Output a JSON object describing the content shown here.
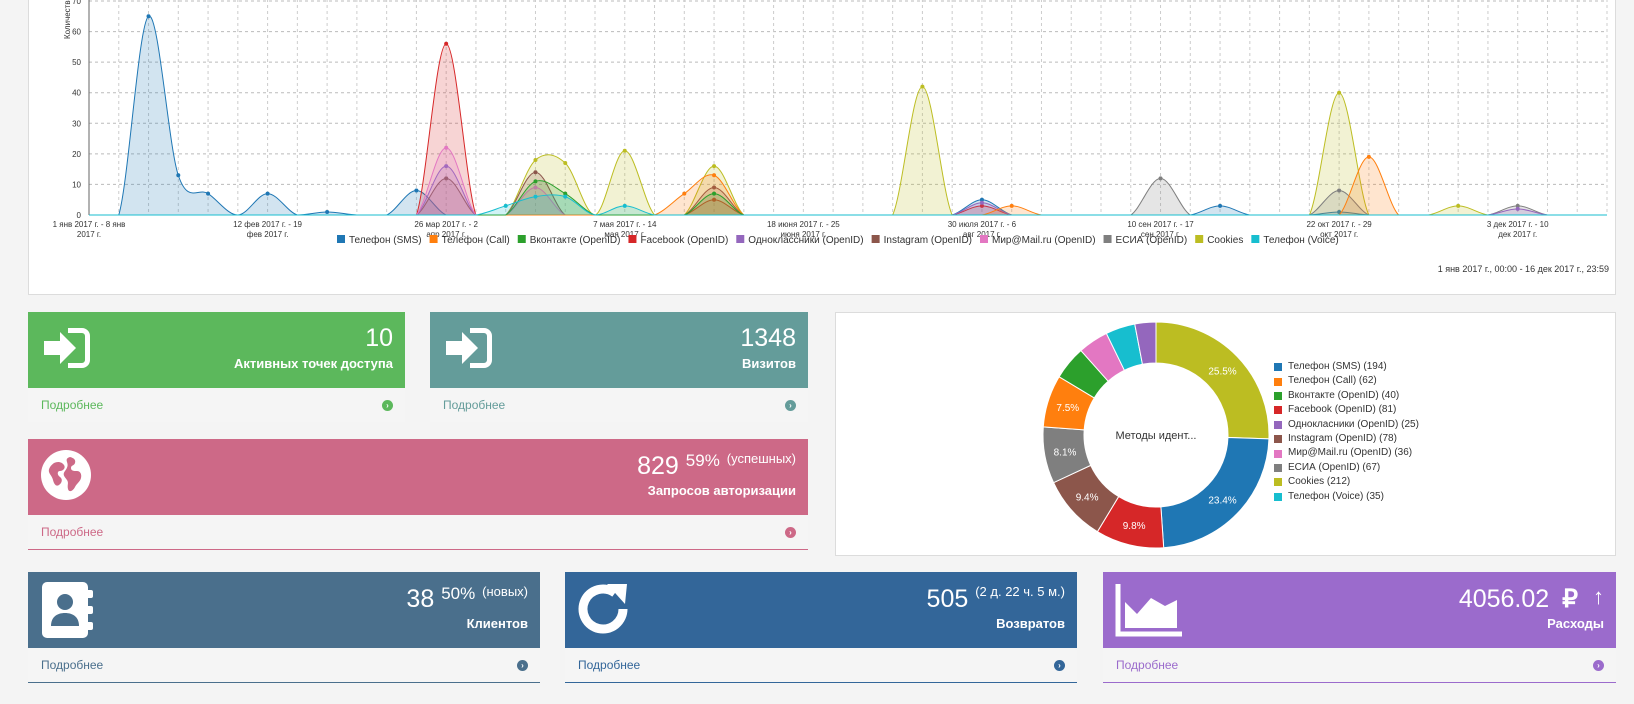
{
  "chart_data": {
    "type": "area",
    "ylabel": "Количество",
    "yticks": [
      0,
      10,
      20,
      30,
      40,
      50,
      60,
      70
    ],
    "ylim": [
      0,
      70
    ],
    "xticks": [
      [
        "1 янв 2017 г. - 8 янв",
        "2017 г."
      ],
      [
        "12 фев 2017 г. - 19",
        "фев 2017 г."
      ],
      [
        "26 мар 2017 г. - 2",
        "апр 2017 г."
      ],
      [
        "7 мая 2017 г. - 14",
        "мая 2017 г."
      ],
      [
        "18 июня 2017 г. - 25",
        "июня 2017 г."
      ],
      [
        "30 июля 2017 г. - 6",
        "авг 2017 г."
      ],
      [
        "10 сен 2017 г. - 17",
        "сен 2017 г."
      ],
      [
        "22 окт 2017 г. - 29",
        "окт 2017 г."
      ],
      [
        "3 дек 2017 г. - 10",
        "дек 2017 г."
      ]
    ],
    "grid": true,
    "legend_position": "bottom",
    "series": [
      {
        "name": "Телефон (SMS)",
        "color": "#1f77b4",
        "peaks": [
          [
            2,
            65
          ],
          [
            3,
            13
          ],
          [
            4,
            7
          ],
          [
            6,
            7
          ],
          [
            8,
            1
          ],
          [
            11,
            8
          ],
          [
            30,
            5
          ],
          [
            38,
            3
          ],
          [
            42,
            1
          ]
        ]
      },
      {
        "name": "Телефон (Call)",
        "color": "#ff7f0e",
        "peaks": [
          [
            20,
            7
          ],
          [
            21,
            13
          ],
          [
            43,
            19
          ],
          [
            31,
            3
          ]
        ]
      },
      {
        "name": "Вконтакте (OpenID)",
        "color": "#2ca02c",
        "peaks": [
          [
            15,
            11
          ],
          [
            16,
            7
          ],
          [
            21,
            7
          ]
        ]
      },
      {
        "name": "Facebook (OpenID)",
        "color": "#d62728",
        "peaks": [
          [
            12,
            56
          ],
          [
            21,
            5
          ],
          [
            30,
            3
          ]
        ]
      },
      {
        "name": "Одноклассники (OpenID)",
        "color": "#9467bd",
        "peaks": [
          [
            12,
            16
          ],
          [
            30,
            4
          ],
          [
            48,
            2
          ]
        ]
      },
      {
        "name": "Instagram (OpenID)",
        "color": "#8c564b",
        "peaks": [
          [
            12,
            12
          ],
          [
            15,
            14
          ],
          [
            21,
            9
          ]
        ]
      },
      {
        "name": "Мир@Mail.ru (OpenID)",
        "color": "#e377c2",
        "peaks": [
          [
            12,
            22
          ],
          [
            15,
            9
          ]
        ]
      },
      {
        "name": "ЕСИА (OpenID)",
        "color": "#7f7f7f",
        "peaks": [
          [
            36,
            12
          ],
          [
            42,
            8
          ],
          [
            48,
            3
          ]
        ]
      },
      {
        "name": "Cookies",
        "color": "#bcbd22",
        "peaks": [
          [
            15,
            18
          ],
          [
            16,
            17
          ],
          [
            18,
            21
          ],
          [
            21,
            16
          ],
          [
            28,
            42
          ],
          [
            42,
            40
          ],
          [
            46,
            3
          ]
        ]
      },
      {
        "name": "Телефон (Voice)",
        "color": "#17becf",
        "peaks": [
          [
            14,
            3
          ],
          [
            15,
            6
          ],
          [
            16,
            6
          ],
          [
            18,
            3
          ]
        ]
      }
    ]
  },
  "chart_range": "1 янв 2017 г., 00:00 - 16 дек 2017 г., 23:59",
  "tiles": {
    "access_points": {
      "value": "10",
      "caption": "Активных точек доступа",
      "more": "Подробнее",
      "color": "#5cb85c"
    },
    "visits": {
      "value": "1348",
      "caption": "Визитов",
      "more": "Подробнее",
      "color": "#649c9a"
    },
    "auth": {
      "value": "829",
      "pct": "59%",
      "note": "(успешных)",
      "caption": "Запросов авторизации",
      "more": "Подробнее",
      "color": "#cd6987"
    },
    "clients": {
      "value": "38",
      "pct": "50%",
      "note": "(новых)",
      "caption": "Клиентов",
      "more": "Подробнее",
      "color": "#4a6f8c"
    },
    "returns": {
      "value": "505",
      "note": "(2 д. 22 ч. 5 м.)",
      "caption": "Возвратов",
      "more": "Подробнее",
      "color": "#336699"
    },
    "expenses": {
      "value": "4056.02",
      "currency": "₽",
      "trend": "↑",
      "caption": "Расходы",
      "more": "Подробнее",
      "color": "#9b6bcc"
    }
  },
  "donut": {
    "center_label": "Методы идент...",
    "slices": [
      {
        "name": "Телефон (SMS)",
        "value": 194,
        "label": "Телефон (SMS) (194)",
        "pct": "23.4%",
        "color": "#1f77b4"
      },
      {
        "name": "Телефон (Call)",
        "value": 62,
        "label": "Телефон (Call) (62)",
        "pct": "7.5%",
        "color": "#ff7f0e"
      },
      {
        "name": "Вконтакте (OpenID)",
        "value": 40,
        "label": "Вконтакте (OpenID) (40)",
        "pct": "",
        "color": "#2ca02c"
      },
      {
        "name": "Facebook (OpenID)",
        "value": 81,
        "label": "Facebook (OpenID) (81)",
        "pct": "9.8%",
        "color": "#d62728"
      },
      {
        "name": "Однокласники (OpenID)",
        "value": 25,
        "label": "Однокласники (OpenID) (25)",
        "pct": "",
        "color": "#9467bd"
      },
      {
        "name": "Instagram (OpenID)",
        "value": 78,
        "label": "Instagram (OpenID) (78)",
        "pct": "9.4%",
        "color": "#8c564b"
      },
      {
        "name": "Мир@Mail.ru (OpenID)",
        "value": 36,
        "label": "Мир@Mail.ru (OpenID) (36)",
        "pct": "",
        "color": "#e377c2"
      },
      {
        "name": "ЕСИА (OpenID)",
        "value": 67,
        "label": "ЕСИА (OpenID) (67)",
        "pct": "8.1%",
        "color": "#7f7f7f"
      },
      {
        "name": "Cookies",
        "value": 212,
        "label": "Cookies (212)",
        "pct": "25.5%",
        "color": "#bcbd22"
      },
      {
        "name": "Телефон (Voice)",
        "value": 35,
        "label": "Телефон (Voice) (35)",
        "pct": "",
        "color": "#17becf"
      }
    ],
    "order": [
      8,
      0,
      3,
      5,
      7,
      1,
      2,
      6,
      9,
      4
    ]
  }
}
